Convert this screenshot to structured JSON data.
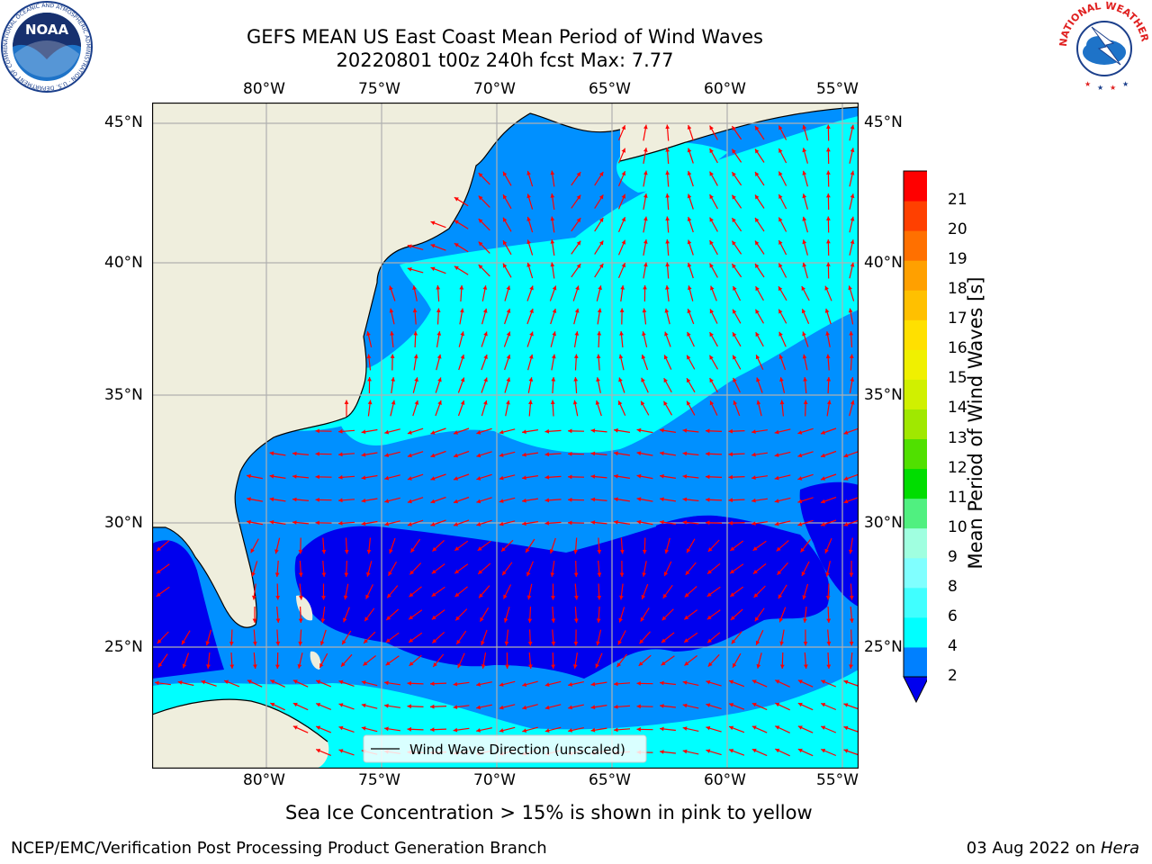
{
  "title": {
    "line1": "GEFS MEAN US East Coast Mean Period of Wind Waves",
    "line2": "20220801 t00z 240h fcst   Max: 7.77"
  },
  "map": {
    "lon_labels": [
      "80°W",
      "75°W",
      "70°W",
      "65°W",
      "60°W",
      "55°W"
    ],
    "lat_labels": [
      "45°N",
      "40°N",
      "35°N",
      "30°N",
      "25°N"
    ],
    "legend_label": "Wind Wave Direction (unscaled)",
    "colors": {
      "land": "#efeedd",
      "band_2_4": "#0090ff",
      "band_4_6": "#00ffff",
      "below_2": "#0000ee",
      "arrow": "#ff0000",
      "grid": "#b0b0b0"
    }
  },
  "colorbar": {
    "label": "Mean Period of Wind Waves [s]",
    "ticks": [
      "2",
      "4",
      "6",
      "8",
      "9",
      "10",
      "11",
      "12",
      "13",
      "14",
      "15",
      "16",
      "17",
      "18",
      "19",
      "20",
      "21"
    ],
    "colors": [
      "#0080ff",
      "#00ffff",
      "#40ffff",
      "#80ffff",
      "#a0ffe0",
      "#50f080",
      "#00dd00",
      "#50e000",
      "#a0e800",
      "#d0f000",
      "#f0f000",
      "#ffe000",
      "#ffc000",
      "#ffa000",
      "#ff7000",
      "#ff4000",
      "#ff0000"
    ],
    "under_color": "#0000ee"
  },
  "subnote": "Sea Ice Concentration > 15% is shown in pink to yellow",
  "footer": {
    "left": "NCEP/EMC/Verification Post Processing Product Generation Branch",
    "right_date": "03 Aug 2022 on ",
    "right_host": "Hera"
  },
  "logos": {
    "noaa_text": "NOAA",
    "noaa_ring": "NATIONAL OCEANIC AND ATMOSPHERIC ADMINISTRATION · U.S. DEPARTMENT OF COMMERCE",
    "nws_ring": "NATIONAL WEATHER SERVICE"
  }
}
